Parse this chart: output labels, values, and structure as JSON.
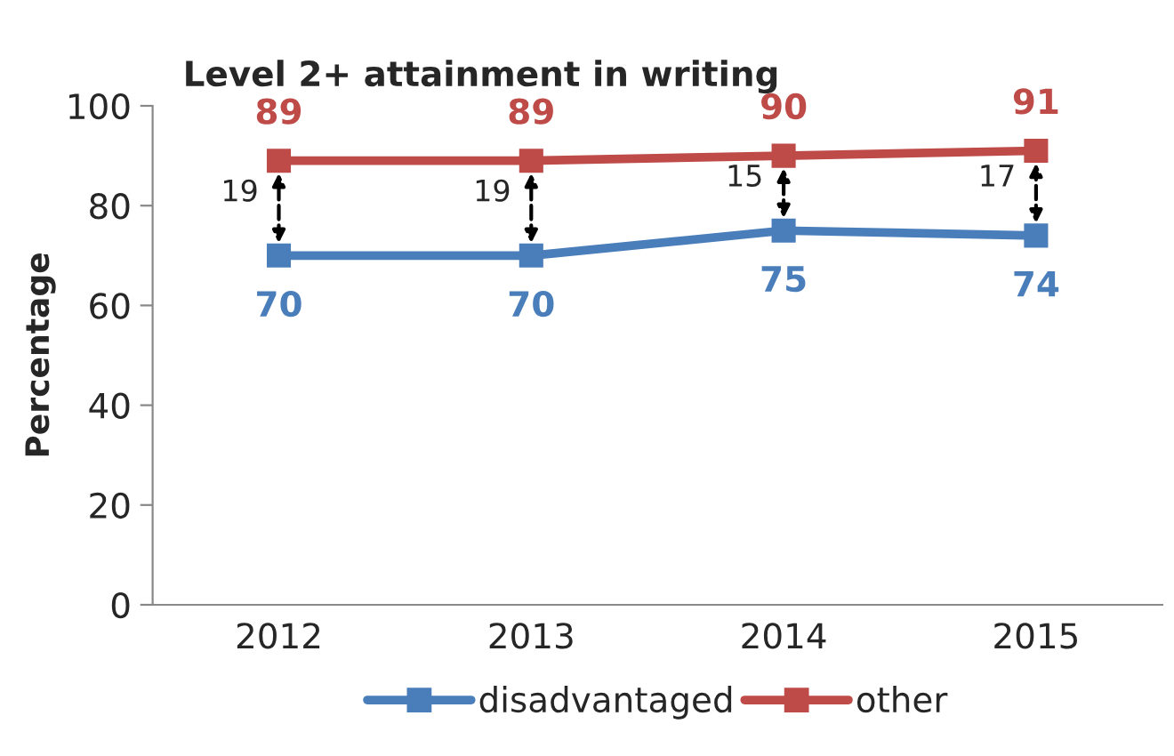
{
  "chart_data": {
    "type": "line",
    "title": "Level 2+ attainment in writing",
    "ylabel": "Percentage",
    "categories": [
      "2012",
      "2013",
      "2014",
      "2015"
    ],
    "series": [
      {
        "name": "disadvantaged",
        "color": "#4a7ebb",
        "values": [
          70,
          70,
          75,
          74
        ]
      },
      {
        "name": "other",
        "color": "#be4b48",
        "values": [
          89,
          89,
          90,
          91
        ]
      }
    ],
    "ylim": [
      0,
      100
    ],
    "yticks": [
      0,
      20,
      40,
      60,
      80,
      100
    ],
    "grid": false,
    "legend": "bottom",
    "marker": "square",
    "line_style": "solid",
    "data_labels": true,
    "annotations": [
      "19",
      "19",
      "15",
      "17"
    ]
  }
}
